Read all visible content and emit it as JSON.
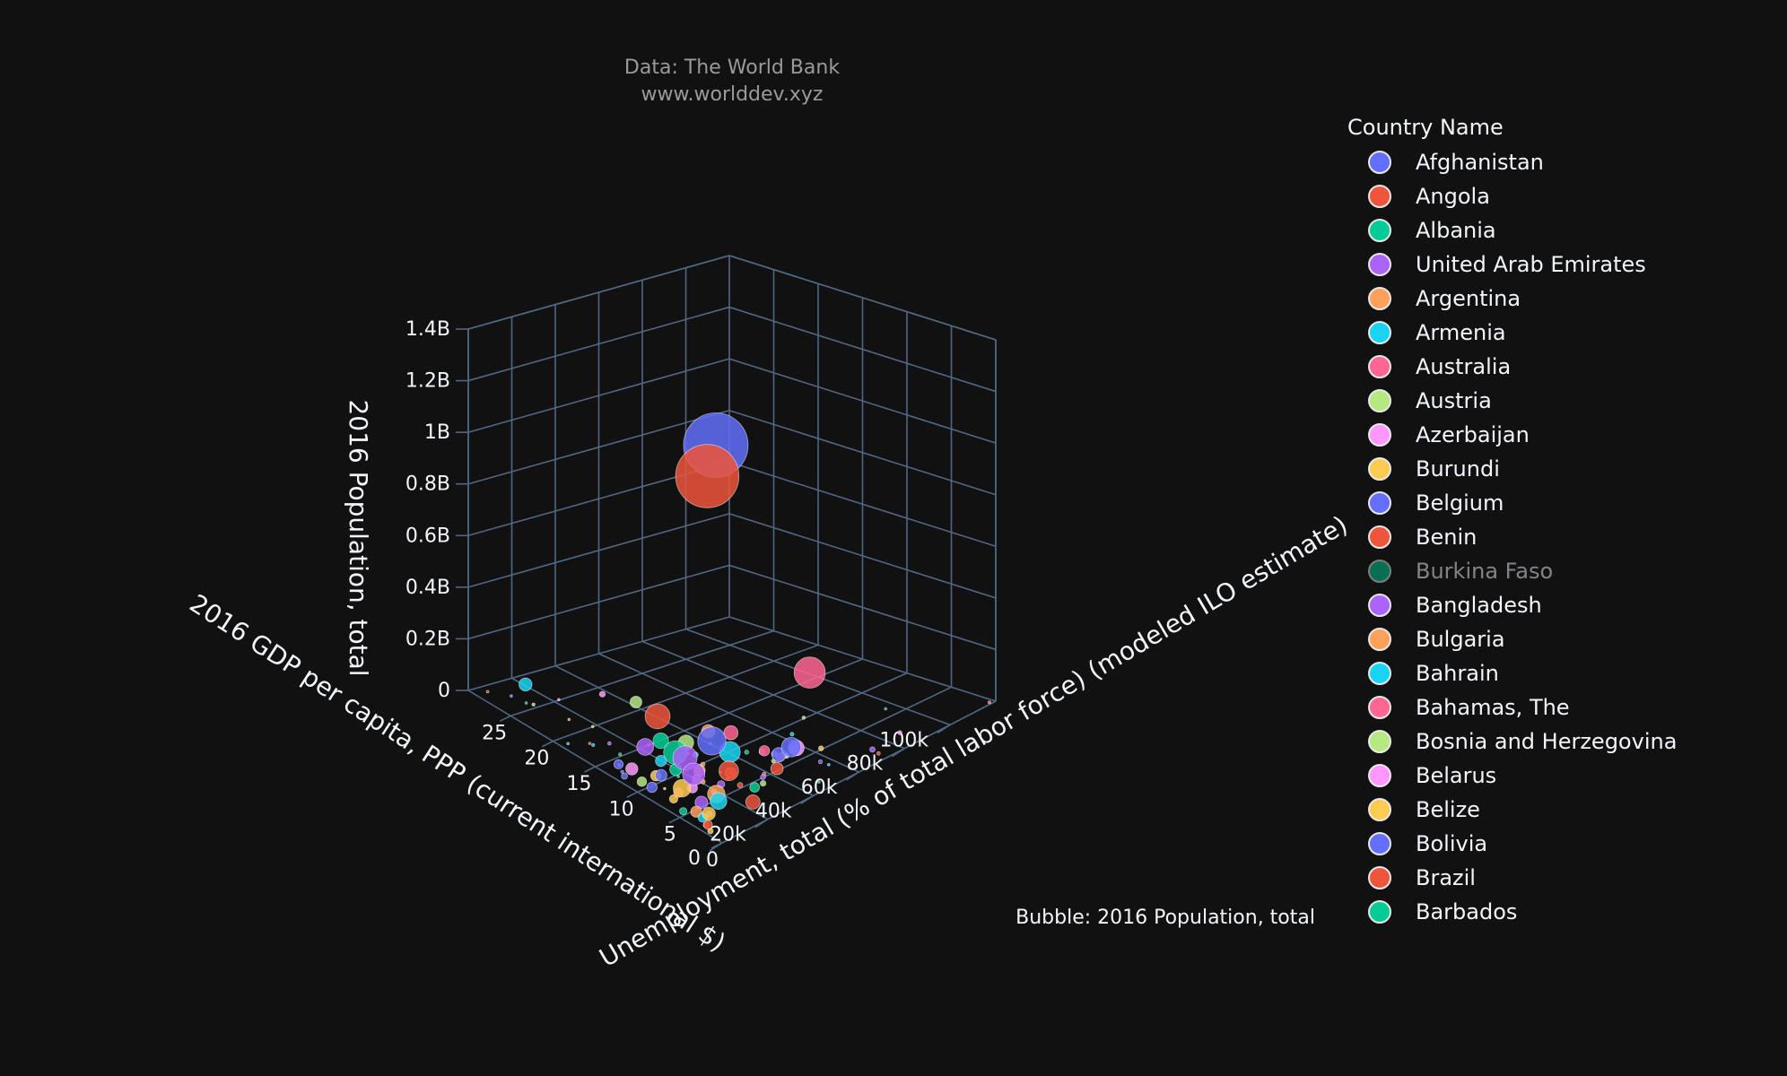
{
  "credit_line1": "Data: The World Bank",
  "credit_line2": "www.worlddev.xyz",
  "bubble_note": "Bubble: 2016 Population, total",
  "legend_title": "Country Name",
  "colors": {
    "background": "#111111",
    "grid": "#506784",
    "text": "#f2f5fa"
  },
  "chart_data": {
    "type": "scatter",
    "mode": "3d-bubble",
    "xlabel": "2016 GDP per capita, PPP (current international $)",
    "ylabel": "Unemployment, total (% of total labor force) (modeled ILO estimate)",
    "zlabel": "2016 Population, total",
    "x_ticks": [
      "0",
      "20k",
      "40k",
      "60k",
      "80k",
      "100k"
    ],
    "y_ticks": [
      "0",
      "5",
      "10",
      "15",
      "20",
      "25"
    ],
    "z_ticks": [
      "0",
      "0.2B",
      "0.4B",
      "0.6B",
      "0.8B",
      "1B",
      "1.2B",
      "1.4B"
    ],
    "xlim": [
      0,
      120000
    ],
    "ylim": [
      0,
      30
    ],
    "zlim": [
      0,
      1400000000
    ],
    "size_by": "2016 Population, total",
    "legend_placement": "right",
    "series": [
      {
        "name": "Afghanistan",
        "color": "#636efa",
        "visible": true,
        "x": 1900,
        "y": 8.8,
        "z": 34600000
      },
      {
        "name": "Angola",
        "color": "#ef553b",
        "visible": true,
        "x": 6800,
        "y": 7.0,
        "z": 28800000
      },
      {
        "name": "Albania",
        "color": "#00cc96",
        "visible": true,
        "x": 11900,
        "y": 15.2,
        "z": 2880000
      },
      {
        "name": "United Arab Emirates",
        "color": "#ab63fa",
        "visible": true,
        "x": 72000,
        "y": 1.6,
        "z": 9400000
      },
      {
        "name": "Argentina",
        "color": "#ffa15a",
        "visible": true,
        "x": 20000,
        "y": 8.0,
        "z": 43600000
      },
      {
        "name": "Armenia",
        "color": "#19d3f3",
        "visible": true,
        "x": 9000,
        "y": 17.6,
        "z": 2930000
      },
      {
        "name": "Australia",
        "color": "#ff6692",
        "visible": true,
        "x": 47000,
        "y": 5.7,
        "z": 24200000
      },
      {
        "name": "Austria",
        "color": "#b6e880",
        "visible": true,
        "x": 51000,
        "y": 6.0,
        "z": 8740000
      },
      {
        "name": "Azerbaijan",
        "color": "#ff97ff",
        "visible": true,
        "x": 17000,
        "y": 5.0,
        "z": 9760000
      },
      {
        "name": "Burundi",
        "color": "#fecb52",
        "visible": true,
        "x": 800,
        "y": 1.6,
        "z": 10500000
      },
      {
        "name": "Belgium",
        "color": "#636efa",
        "visible": true,
        "x": 47000,
        "y": 7.8,
        "z": 11300000
      },
      {
        "name": "Benin",
        "color": "#ef553b",
        "visible": true,
        "x": 2200,
        "y": 2.5,
        "z": 10900000
      },
      {
        "name": "Burkina Faso",
        "color": "#00cc96",
        "visible": false
      },
      {
        "name": "Bangladesh",
        "color": "#ab63fa",
        "visible": true,
        "x": 3900,
        "y": 4.4,
        "z": 163000000
      },
      {
        "name": "Bulgaria",
        "color": "#ffa15a",
        "visible": true,
        "x": 20000,
        "y": 7.6,
        "z": 7130000
      },
      {
        "name": "Bahrain",
        "color": "#19d3f3",
        "visible": true,
        "x": 47000,
        "y": 1.2,
        "z": 1430000
      },
      {
        "name": "Bahamas, The",
        "color": "#ff6692",
        "visible": true,
        "x": 30000,
        "y": 12.0,
        "z": 390000
      },
      {
        "name": "Bosnia and Herzegovina",
        "color": "#b6e880",
        "visible": true,
        "x": 12000,
        "y": 25.4,
        "z": 3520000
      },
      {
        "name": "Belarus",
        "color": "#ff97ff",
        "visible": true,
        "x": 18000,
        "y": 5.8,
        "z": 9500000
      },
      {
        "name": "Belize",
        "color": "#fecb52",
        "visible": true,
        "x": 8300,
        "y": 9.0,
        "z": 370000
      },
      {
        "name": "Bolivia",
        "color": "#636efa",
        "visible": true,
        "x": 7300,
        "y": 3.5,
        "z": 10900000
      },
      {
        "name": "Brazil",
        "color": "#ef553b",
        "visible": true,
        "x": 15000,
        "y": 11.6,
        "z": 206000000
      },
      {
        "name": "Barbados",
        "color": "#00cc96",
        "visible": true,
        "x": 17000,
        "y": 9.7,
        "z": 285000
      }
    ],
    "other_points": [
      {
        "color": "#636efa",
        "x": 15500,
        "y": 4.9,
        "z": 1379000000
      },
      {
        "color": "#ef553b",
        "x": 6500,
        "y": 3.5,
        "z": 1324000000
      },
      {
        "color": "#ff6692",
        "x": 57000,
        "y": 4.9,
        "z": 323000000
      },
      {
        "color": "#636efa",
        "x": 11500,
        "y": 4.3,
        "z": 261000000
      },
      {
        "color": "#ab63fa",
        "x": 5300,
        "y": 5.8,
        "z": 193000000
      },
      {
        "color": "#00cc96",
        "x": 5900,
        "y": 7.1,
        "z": 186000000
      },
      {
        "color": "#19d3f3",
        "x": 24000,
        "y": 5.5,
        "z": 144000000
      },
      {
        "color": "#636efa",
        "x": 42000,
        "y": 3.1,
        "z": 127000000
      },
      {
        "color": "#ef553b",
        "x": 17500,
        "y": 3.9,
        "z": 127000000
      },
      {
        "color": "#ffa15a",
        "x": 7500,
        "y": 2.7,
        "z": 103000000
      },
      {
        "color": "#fecb52",
        "x": 1700,
        "y": 5.2,
        "z": 102000000
      },
      {
        "color": "#ab63fa",
        "x": 11000,
        "y": 12.0,
        "z": 95000000
      },
      {
        "color": "#19d3f3",
        "x": 6200,
        "y": 2.1,
        "z": 93000000
      },
      {
        "color": "#ff97ff",
        "x": 48000,
        "y": 4.1,
        "z": 82000000
      },
      {
        "color": "#b6e880",
        "x": 25000,
        "y": 10.9,
        "z": 79000000
      },
      {
        "color": "#00cc96",
        "x": 19500,
        "y": 12.4,
        "z": 80000000
      },
      {
        "color": "#ef553b",
        "x": 16500,
        "y": 0.8,
        "z": 68000000
      },
      {
        "color": "#ff6692",
        "x": 42000,
        "y": 10.1,
        "z": 66900000
      },
      {
        "color": "#636efa",
        "x": 43000,
        "y": 4.8,
        "z": 65600000
      },
      {
        "color": "#ffa15a",
        "x": 38000,
        "y": 11.7,
        "z": 60600000
      },
      {
        "color": "#fecb52",
        "x": 2700,
        "y": 2.3,
        "z": 56000000
      },
      {
        "color": "#19d3f3",
        "x": 13000,
        "y": 26.6,
        "z": 56000000
      },
      {
        "color": "#ab63fa",
        "x": 5800,
        "y": 4.0,
        "z": 52900000
      },
      {
        "color": "#ef553b",
        "x": 38000,
        "y": 3.7,
        "z": 51200000
      },
      {
        "color": "#00cc96",
        "x": 14000,
        "y": 9.2,
        "z": 48200000
      },
      {
        "color": "#ff97ff",
        "x": 3100,
        "y": 11.5,
        "z": 48500000
      },
      {
        "color": "#b6e880",
        "x": 36000,
        "y": 19.6,
        "z": 46500000
      },
      {
        "color": "#636efa",
        "x": 8200,
        "y": 9.4,
        "z": 45000000
      },
      {
        "color": "#ffa15a",
        "x": 2000,
        "y": 3.6,
        "z": 41500000
      },
      {
        "color": "#19d3f3",
        "x": 15000,
        "y": 11.2,
        "z": 40600000
      },
      {
        "color": "#ff6692",
        "x": 45000,
        "y": 7.0,
        "z": 36300000
      },
      {
        "color": "#ef553b",
        "x": 27000,
        "y": 6.2,
        "z": 38000000
      },
      {
        "color": "#fecb52",
        "x": 7800,
        "y": 9.9,
        "z": 35300000
      },
      {
        "color": "#ab63fa",
        "x": 53000,
        "y": 5.6,
        "z": 32300000
      },
      {
        "color": "#00cc96",
        "x": 27000,
        "y": 3.4,
        "z": 31200000
      },
      {
        "color": "#ff97ff",
        "x": 12000,
        "y": 6.7,
        "z": 31800000
      },
      {
        "color": "#636efa",
        "x": 4000,
        "y": 13.3,
        "z": 28200000
      },
      {
        "color": "#b6e880",
        "x": 2300,
        "y": 10.1,
        "z": 29600000
      },
      {
        "color": "#ffa15a",
        "x": 17000,
        "y": 7.5,
        "z": 30400000
      },
      {
        "color": "#19d3f3",
        "x": 2600,
        "y": 3.0,
        "z": 27400000
      },
      {
        "color": "#ef553b",
        "x": 1200,
        "y": 2.0,
        "z": 25200000
      },
      {
        "color": "#fecb52",
        "x": 3600,
        "y": 6.7,
        "z": 23700000
      },
      {
        "color": "#ab63fa",
        "x": 22000,
        "y": 6.0,
        "z": 17900000
      },
      {
        "color": "#00cc96",
        "x": 1500,
        "y": 5.0,
        "z": 18000000
      },
      {
        "color": "#ff6692",
        "x": 50000,
        "y": 6.0,
        "z": 17000000
      },
      {
        "color": "#636efa",
        "x": 2100,
        "y": 12.1,
        "z": 12500000
      },
      {
        "color": "#ff97ff",
        "x": 36000,
        "y": 23.5,
        "z": 10800000
      },
      {
        "color": "#19d3f3",
        "x": 30000,
        "y": 11.1,
        "z": 10300000
      },
      {
        "color": "#b6e880",
        "x": 33000,
        "y": 4.0,
        "z": 10600000
      },
      {
        "color": "#ef553b",
        "x": 27000,
        "y": 5.1,
        "z": 9800000
      },
      {
        "color": "#ffa15a",
        "x": 49000,
        "y": 6.9,
        "z": 9900000
      },
      {
        "color": "#fecb52",
        "x": 62000,
        "y": 4.9,
        "z": 8400000
      },
      {
        "color": "#ab63fa",
        "x": 36000,
        "y": 4.8,
        "z": 8550000
      },
      {
        "color": "#636efa",
        "x": 56000,
        "y": 3.4,
        "z": 5240000
      },
      {
        "color": "#00cc96",
        "x": 44000,
        "y": 8.8,
        "z": 5500000
      },
      {
        "color": "#ff6692",
        "x": 38000,
        "y": 5.2,
        "z": 4700000
      },
      {
        "color": "#19d3f3",
        "x": 63000,
        "y": 8.5,
        "z": 4780000
      },
      {
        "color": "#ff97ff",
        "x": 86000,
        "y": 2.1,
        "z": 5600000
      },
      {
        "color": "#b6e880",
        "x": 46000,
        "y": 6.2,
        "z": 5730000
      },
      {
        "color": "#ef553b",
        "x": 72000,
        "y": 0.9,
        "z": 4100000
      },
      {
        "color": "#ffa15a",
        "x": 28000,
        "y": 9.7,
        "z": 5400000
      },
      {
        "color": "#fecb52",
        "x": 29000,
        "y": 7.9,
        "z": 2070000
      },
      {
        "color": "#636efa",
        "x": 25000,
        "y": 9.6,
        "z": 1960000
      },
      {
        "color": "#ab63fa",
        "x": 28000,
        "y": 6.8,
        "z": 1320000
      },
      {
        "color": "#00cc96",
        "x": 96000,
        "y": 6.3,
        "z": 580000
      },
      {
        "color": "#ff6692",
        "x": 118000,
        "y": 0.2,
        "z": 2570000
      },
      {
        "color": "#19d3f3",
        "x": 57000,
        "y": 2.7,
        "z": 330000
      },
      {
        "color": "#b6e880",
        "x": 74000,
        "y": 10.0,
        "z": 3800000
      },
      {
        "color": "#ff97ff",
        "x": 22000,
        "y": 25.0,
        "z": 2200000
      },
      {
        "color": "#ef553b",
        "x": 5000,
        "y": 29.0,
        "z": 2500000
      },
      {
        "color": "#636efa",
        "x": 10000,
        "y": 27.5,
        "z": 2100000
      },
      {
        "color": "#ffa15a",
        "x": 15000,
        "y": 22.0,
        "z": 600000
      },
      {
        "color": "#00cc96",
        "x": 11000,
        "y": 26.0,
        "z": 600000
      },
      {
        "color": "#fecb52",
        "x": 18000,
        "y": 20.0,
        "z": 1200000
      },
      {
        "color": "#ab63fa",
        "x": 14000,
        "y": 17.0,
        "z": 4000000
      },
      {
        "color": "#19d3f3",
        "x": 3000,
        "y": 19.0,
        "z": 900000
      },
      {
        "color": "#ff6692",
        "x": 24000,
        "y": 15.0,
        "z": 900000
      },
      {
        "color": "#b6e880",
        "x": 40000,
        "y": 12.0,
        "z": 400000
      },
      {
        "color": "#ff97ff",
        "x": 7000,
        "y": 14.0,
        "z": 1500000
      },
      {
        "color": "#ef553b",
        "x": 9000,
        "y": 18.0,
        "z": 1800000
      },
      {
        "color": "#636efa",
        "x": 4500,
        "y": 13.0,
        "z": 3200000
      }
    ]
  }
}
